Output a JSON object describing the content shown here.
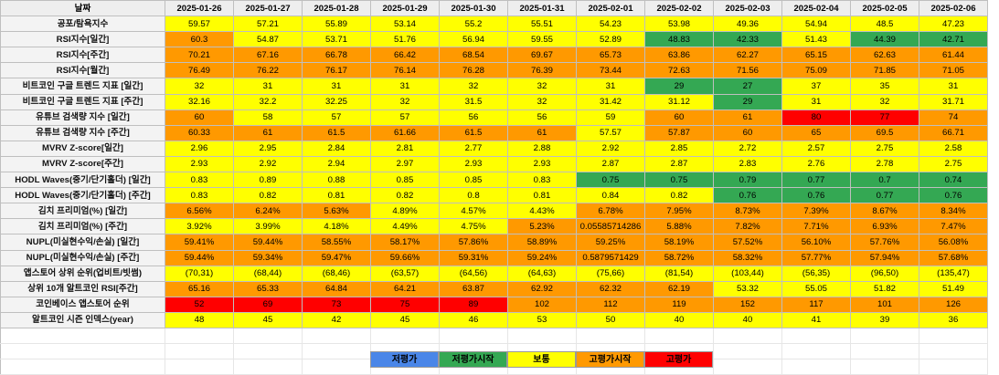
{
  "colors": {
    "red": "#ff0000",
    "orange": "#ff9900",
    "yellow": "#ffff00",
    "green": "#34a853",
    "blue": "#4a86e8",
    "header_bg": "#eeeeee",
    "label_bg": "#f3f3f3"
  },
  "table": {
    "corner": "날짜",
    "dates": [
      "2025-01-26",
      "2025-01-27",
      "2025-01-28",
      "2025-01-29",
      "2025-01-30",
      "2025-01-31",
      "2025-02-01",
      "2025-02-02",
      "2025-02-03",
      "2025-02-04",
      "2025-02-05",
      "2025-02-06"
    ],
    "rows": [
      {
        "label": "공포/탐욕지수",
        "values": [
          "59.57",
          "57.21",
          "55.89",
          "53.14",
          "55.2",
          "55.51",
          "54.23",
          "53.98",
          "49.36",
          "54.94",
          "48.5",
          "47.23"
        ],
        "colors": [
          "yellow",
          "yellow",
          "yellow",
          "yellow",
          "yellow",
          "yellow",
          "yellow",
          "yellow",
          "yellow",
          "yellow",
          "yellow",
          "yellow"
        ]
      },
      {
        "label": "RSI지수[일간]",
        "values": [
          "60.3",
          "54.87",
          "53.71",
          "51.76",
          "56.94",
          "59.55",
          "52.89",
          "48.83",
          "42.33",
          "51.43",
          "44.39",
          "42.71"
        ],
        "colors": [
          "orange",
          "yellow",
          "yellow",
          "yellow",
          "yellow",
          "yellow",
          "yellow",
          "green",
          "green",
          "yellow",
          "green",
          "green"
        ]
      },
      {
        "label": "RSI지수[주간]",
        "values": [
          "70.21",
          "67.16",
          "66.78",
          "66.42",
          "68.54",
          "69.67",
          "65.73",
          "63.86",
          "62.27",
          "65.15",
          "62.63",
          "61.44"
        ],
        "colors": [
          "orange",
          "orange",
          "orange",
          "orange",
          "orange",
          "orange",
          "orange",
          "orange",
          "orange",
          "orange",
          "orange",
          "orange"
        ]
      },
      {
        "label": "RSI지수[월간]",
        "values": [
          "76.49",
          "76.22",
          "76.17",
          "76.14",
          "76.28",
          "76.39",
          "73.44",
          "72.63",
          "71.56",
          "75.09",
          "71.85",
          "71.05"
        ],
        "colors": [
          "orange",
          "orange",
          "orange",
          "orange",
          "orange",
          "orange",
          "orange",
          "orange",
          "orange",
          "orange",
          "orange",
          "orange"
        ]
      },
      {
        "label": "비트코인 구글 트렌드 지표 [일간]",
        "values": [
          "32",
          "31",
          "31",
          "31",
          "32",
          "32",
          "31",
          "29",
          "27",
          "37",
          "35",
          "31"
        ],
        "colors": [
          "yellow",
          "yellow",
          "yellow",
          "yellow",
          "yellow",
          "yellow",
          "yellow",
          "green",
          "green",
          "yellow",
          "yellow",
          "yellow"
        ]
      },
      {
        "label": "비트코인 구글 트렌드 지표 [주간]",
        "values": [
          "32.16",
          "32.2",
          "32.25",
          "32",
          "31.5",
          "32",
          "31.42",
          "31.12",
          "29",
          "31",
          "32",
          "31.71"
        ],
        "colors": [
          "yellow",
          "yellow",
          "yellow",
          "yellow",
          "yellow",
          "yellow",
          "yellow",
          "yellow",
          "green",
          "yellow",
          "yellow",
          "yellow"
        ]
      },
      {
        "label": "유튜브 검색량 지수 [일간]",
        "values": [
          "60",
          "58",
          "57",
          "57",
          "56",
          "56",
          "59",
          "60",
          "61",
          "80",
          "77",
          "74"
        ],
        "colors": [
          "orange",
          "yellow",
          "yellow",
          "yellow",
          "yellow",
          "yellow",
          "yellow",
          "orange",
          "orange",
          "red",
          "red",
          "orange"
        ]
      },
      {
        "label": "유튜브 검색량 지수 [주간]",
        "values": [
          "60.33",
          "61",
          "61.5",
          "61.66",
          "61.5",
          "61",
          "57.57",
          "57.87",
          "60",
          "65",
          "69.5",
          "66.71"
        ],
        "colors": [
          "orange",
          "orange",
          "orange",
          "orange",
          "orange",
          "orange",
          "yellow",
          "orange",
          "orange",
          "orange",
          "orange",
          "orange"
        ]
      },
      {
        "label": "MVRV Z-score[일간]",
        "values": [
          "2.96",
          "2.95",
          "2.84",
          "2.81",
          "2.77",
          "2.88",
          "2.92",
          "2.85",
          "2.72",
          "2.57",
          "2.75",
          "2.58"
        ],
        "colors": [
          "yellow",
          "yellow",
          "yellow",
          "yellow",
          "yellow",
          "yellow",
          "yellow",
          "yellow",
          "yellow",
          "yellow",
          "yellow",
          "yellow"
        ]
      },
      {
        "label": "MVRV Z-score[주간]",
        "values": [
          "2.93",
          "2.92",
          "2.94",
          "2.97",
          "2.93",
          "2.93",
          "2.87",
          "2.87",
          "2.83",
          "2.76",
          "2.78",
          "2.75"
        ],
        "colors": [
          "yellow",
          "yellow",
          "yellow",
          "yellow",
          "yellow",
          "yellow",
          "yellow",
          "yellow",
          "yellow",
          "yellow",
          "yellow",
          "yellow"
        ]
      },
      {
        "label": "HODL Waves(중기/단기홀더) [일간]",
        "values": [
          "0.83",
          "0.89",
          "0.88",
          "0.85",
          "0.85",
          "0.83",
          "0.75",
          "0.75",
          "0.79",
          "0.77",
          "0.7",
          "0.74"
        ],
        "colors": [
          "yellow",
          "yellow",
          "yellow",
          "yellow",
          "yellow",
          "yellow",
          "green",
          "green",
          "green",
          "green",
          "green",
          "green"
        ]
      },
      {
        "label": "HODL Waves(중기/단기홀더) [주간]",
        "values": [
          "0.83",
          "0.82",
          "0.81",
          "0.82",
          "0.8",
          "0.81",
          "0.84",
          "0.82",
          "0.76",
          "0.76",
          "0.77",
          "0.76"
        ],
        "colors": [
          "yellow",
          "yellow",
          "yellow",
          "yellow",
          "yellow",
          "yellow",
          "yellow",
          "yellow",
          "green",
          "green",
          "green",
          "green"
        ]
      },
      {
        "label": "김치 프리미엄(%) [일간]",
        "values": [
          "6.56%",
          "6.24%",
          "5.63%",
          "4.89%",
          "4.57%",
          "4.43%",
          "6.78%",
          "7.95%",
          "8.73%",
          "7.39%",
          "8.67%",
          "8.34%"
        ],
        "colors": [
          "orange",
          "orange",
          "orange",
          "yellow",
          "yellow",
          "yellow",
          "orange",
          "orange",
          "orange",
          "orange",
          "orange",
          "orange"
        ]
      },
      {
        "label": "김치 프리미엄(%) [주간]",
        "values": [
          "3.92%",
          "3.99%",
          "4.18%",
          "4.49%",
          "4.75%",
          "5.23%",
          "0.05585714286",
          "5.88%",
          "7.82%",
          "7.71%",
          "6.93%",
          "7.47%"
        ],
        "colors": [
          "yellow",
          "yellow",
          "yellow",
          "yellow",
          "yellow",
          "orange",
          "orange",
          "orange",
          "orange",
          "orange",
          "orange",
          "orange"
        ]
      },
      {
        "label": "NUPL(미실현수익/손실) [일간]",
        "values": [
          "59.41%",
          "59.44%",
          "58.55%",
          "58.17%",
          "57.86%",
          "58.89%",
          "59.25%",
          "58.19%",
          "57.52%",
          "56.10%",
          "57.76%",
          "56.08%"
        ],
        "colors": [
          "orange",
          "orange",
          "orange",
          "orange",
          "orange",
          "orange",
          "orange",
          "orange",
          "orange",
          "orange",
          "orange",
          "orange"
        ]
      },
      {
        "label": "NUPL(미실현수익/손실) [주간]",
        "values": [
          "59.44%",
          "59.34%",
          "59.47%",
          "59.66%",
          "59.31%",
          "59.24%",
          "0.5879571429",
          "58.72%",
          "58.32%",
          "57.77%",
          "57.94%",
          "57.68%"
        ],
        "colors": [
          "orange",
          "orange",
          "orange",
          "orange",
          "orange",
          "orange",
          "orange",
          "orange",
          "orange",
          "orange",
          "orange",
          "orange"
        ]
      },
      {
        "label": "앱스토어 상위 순위(업비트/빗썸)",
        "values": [
          "(70,31)",
          "(68,44)",
          "(68,46)",
          "(63,57)",
          "(64,56)",
          "(64,63)",
          "(75,66)",
          "(81,54)",
          "(103,44)",
          "(56,35)",
          "(96,50)",
          "(135,47)"
        ],
        "colors": [
          "yellow",
          "yellow",
          "yellow",
          "yellow",
          "yellow",
          "yellow",
          "yellow",
          "yellow",
          "yellow",
          "yellow",
          "yellow",
          "yellow"
        ]
      },
      {
        "label": "상위 10개 알트코인 RSI[주간]",
        "values": [
          "65.16",
          "65.33",
          "64.84",
          "64.21",
          "63.87",
          "62.92",
          "62.32",
          "62.19",
          "53.32",
          "55.05",
          "51.82",
          "51.49"
        ],
        "colors": [
          "orange",
          "orange",
          "orange",
          "orange",
          "orange",
          "orange",
          "orange",
          "orange",
          "yellow",
          "yellow",
          "yellow",
          "yellow"
        ]
      },
      {
        "label": "코인베이스 앱스토어 순위",
        "values": [
          "52",
          "69",
          "73",
          "75",
          "89",
          "102",
          "112",
          "119",
          "152",
          "117",
          "101",
          "126"
        ],
        "colors": [
          "red",
          "red",
          "red",
          "red",
          "red",
          "orange",
          "orange",
          "orange",
          "orange",
          "orange",
          "orange",
          "orange"
        ]
      },
      {
        "label": "알트코인 시즌 인덱스(year)",
        "values": [
          "48",
          "45",
          "42",
          "45",
          "46",
          "53",
          "50",
          "40",
          "40",
          "41",
          "39",
          "36"
        ],
        "colors": [
          "yellow",
          "yellow",
          "yellow",
          "yellow",
          "yellow",
          "yellow",
          "yellow",
          "yellow",
          "yellow",
          "yellow",
          "yellow",
          "yellow"
        ]
      }
    ]
  },
  "legend": [
    {
      "label": "저평가",
      "color": "blue"
    },
    {
      "label": "저평가시작",
      "color": "green"
    },
    {
      "label": "보통",
      "color": "yellow"
    },
    {
      "label": "고평가시작",
      "color": "orange"
    },
    {
      "label": "고평가",
      "color": "red"
    }
  ]
}
